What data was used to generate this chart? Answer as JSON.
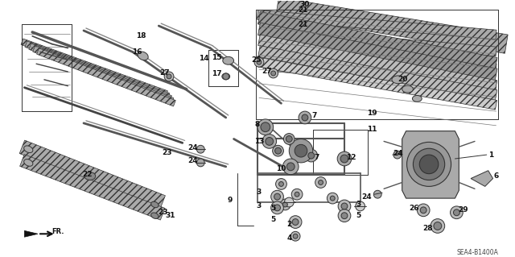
{
  "bg_color": "#ffffff",
  "diagram_code": "SEA4-B1400A",
  "fr_label": "FR.",
  "line_color": "#333333",
  "hatch_color": "#555555",
  "label_fontsize": 6.5
}
